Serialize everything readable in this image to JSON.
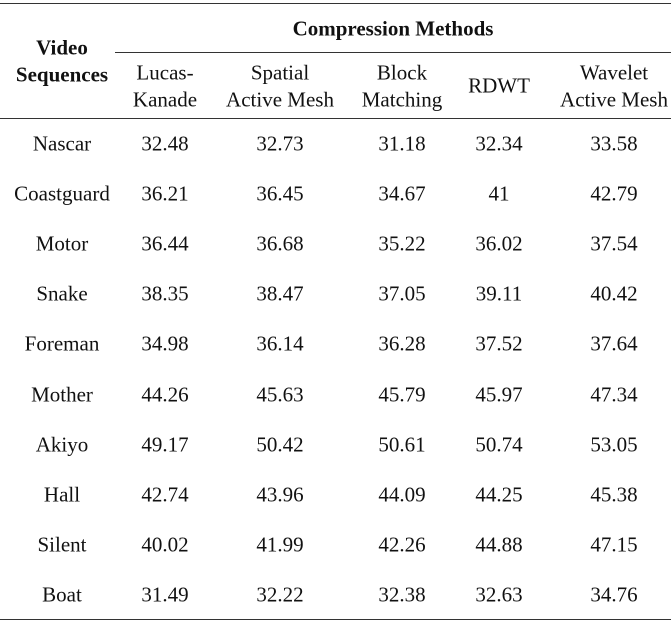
{
  "table": {
    "row_header": [
      "Video",
      "Sequences"
    ],
    "group_header": "Compression Methods",
    "columns": [
      [
        "Lucas-",
        "Kanade"
      ],
      [
        "Spatial",
        "Active Mesh"
      ],
      [
        "Block",
        "Matching"
      ],
      [
        "RDWT"
      ],
      [
        "Wavelet",
        "Active Mesh"
      ]
    ],
    "rows": [
      [
        "Nascar",
        "32.48",
        "32.73",
        "31.18",
        "32.34",
        "33.58"
      ],
      [
        "Coastguard",
        "36.21",
        "36.45",
        "34.67",
        "41",
        "42.79"
      ],
      [
        "Motor",
        "36.44",
        "36.68",
        "35.22",
        "36.02",
        "37.54"
      ],
      [
        "Snake",
        "38.35",
        "38.47",
        "37.05",
        "39.11",
        "40.42"
      ],
      [
        "Foreman",
        "34.98",
        "36.14",
        "36.28",
        "37.52",
        "37.64"
      ],
      [
        "Mother",
        "44.26",
        "45.63",
        "45.79",
        "45.97",
        "47.34"
      ],
      [
        "Akiyo",
        "49.17",
        "50.42",
        "50.61",
        "50.74",
        "53.05"
      ],
      [
        "Hall",
        "42.74",
        "43.96",
        "44.09",
        "44.25",
        "45.38"
      ],
      [
        "Silent",
        "40.02",
        "41.99",
        "42.26",
        "44.88",
        "47.15"
      ],
      [
        "Boat",
        "31.49",
        "32.22",
        "32.38",
        "32.63",
        "34.76"
      ]
    ]
  }
}
